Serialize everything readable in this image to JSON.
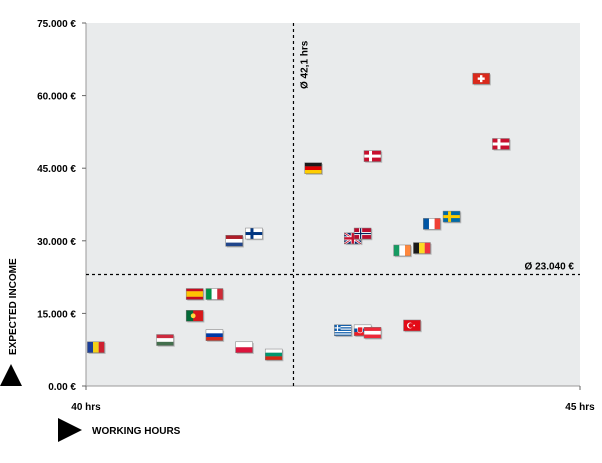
{
  "chart_data": {
    "type": "scatter",
    "xlabel": "WORKING HOURS",
    "ylabel": "EXPECTED INCOME",
    "xlim": [
      40,
      45
    ],
    "ylim": [
      0,
      75000
    ],
    "x_ticks": [
      "40 hrs",
      "45 hrs"
    ],
    "y_ticks": [
      "0.00 €",
      "15.000 €",
      "30.000 €",
      "45.000 €",
      "60.000 €",
      "75.000 €"
    ],
    "y_tick_values": [
      0,
      15000,
      30000,
      45000,
      60000,
      75000
    ],
    "grid": false,
    "background_color": "#e9ebec",
    "mean_x": {
      "value": 42.1,
      "label": "Ø 42,1  hrs"
    },
    "mean_y": {
      "value": 23040,
      "label": "Ø 23.040 €"
    },
    "points": [
      {
        "flag": "romania",
        "x": 40.1,
        "y": 8000
      },
      {
        "flag": "hungary",
        "x": 40.8,
        "y": 9500
      },
      {
        "flag": "spain",
        "x": 41.1,
        "y": 19000
      },
      {
        "flag": "italy",
        "x": 41.3,
        "y": 19000
      },
      {
        "flag": "portugal",
        "x": 41.1,
        "y": 14500
      },
      {
        "flag": "russia",
        "x": 41.3,
        "y": 10500
      },
      {
        "flag": "poland",
        "x": 41.6,
        "y": 8000
      },
      {
        "flag": "bulgaria",
        "x": 41.9,
        "y": 6500
      },
      {
        "flag": "netherlands",
        "x": 41.5,
        "y": 30000
      },
      {
        "flag": "finland",
        "x": 41.7,
        "y": 31500
      },
      {
        "flag": "germany",
        "x": 42.3,
        "y": 45000
      },
      {
        "flag": "denmark",
        "x": 42.9,
        "y": 47500
      },
      {
        "flag": "united-kingdom",
        "x": 42.7,
        "y": 30500
      },
      {
        "flag": "norway",
        "x": 42.8,
        "y": 31500
      },
      {
        "flag": "greece",
        "x": 42.6,
        "y": 11500
      },
      {
        "flag": "slovakia",
        "x": 42.8,
        "y": 11500
      },
      {
        "flag": "austria",
        "x": 42.9,
        "y": 11000
      },
      {
        "flag": "ireland",
        "x": 43.2,
        "y": 28000
      },
      {
        "flag": "belgium",
        "x": 43.4,
        "y": 28500
      },
      {
        "flag": "france",
        "x": 43.5,
        "y": 33500
      },
      {
        "flag": "sweden",
        "x": 43.7,
        "y": 35000
      },
      {
        "flag": "turkey",
        "x": 43.3,
        "y": 12500
      },
      {
        "flag": "switzerland",
        "x": 44.0,
        "y": 63500
      },
      {
        "flag": "denmark",
        "x": 44.2,
        "y": 50000
      }
    ]
  }
}
